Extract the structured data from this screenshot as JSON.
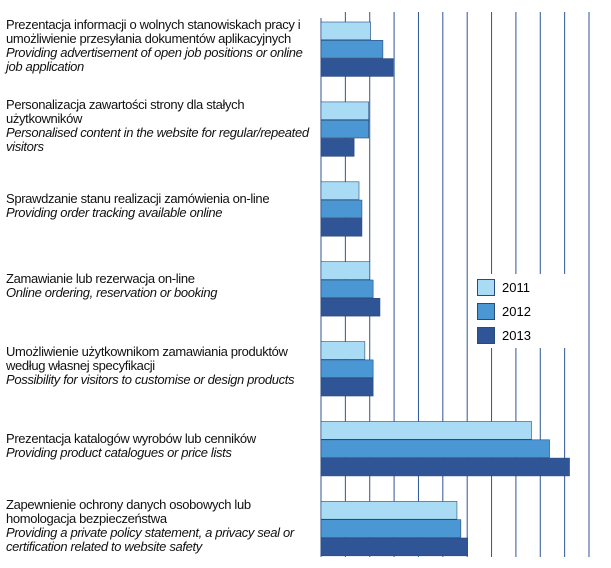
{
  "chart_data": {
    "type": "hbar",
    "categories": [
      {
        "pl": "Prezentacja informacji o wolnych stanowiskach pracy i umożliwienie przesyłania dokumentów aplikacyjnych",
        "en": "Providing advertisement of open job positions or online job application"
      },
      {
        "pl": "Personalizacja zawartości strony dla stałych użytkowników",
        "en": "Personalised content in the website for regular/repeated visitors"
      },
      {
        "pl": "Sprawdzanie stanu realizacji zamówienia on-line",
        "en": "Providing order tracking available online"
      },
      {
        "pl": "Zamawianie lub rezerwacja on-line",
        "en": "Online ordering, reservation or booking"
      },
      {
        "pl": "Umożliwienie użytkownikom zamawiania produktów według własnej specyfikacji",
        "en": "Possibility for visitors to customise or design products"
      },
      {
        "pl": "Prezentacja katalogów wyrobów lub cenników",
        "en": "Providing product catalogues or price lists"
      },
      {
        "pl": "Zapewnienie ochrony danych osobowych lub homologacja bezpieczeństwa",
        "en": "Providing a private policy statement, a privacy seal or certification related to website safety"
      }
    ],
    "series": [
      {
        "name": "2011",
        "color": "#a9dcf4",
        "values": [
          10.2,
          9.8,
          7.8,
          10.0,
          9.0,
          43.2,
          27.9
        ]
      },
      {
        "name": "2012",
        "color": "#4a97d4",
        "values": [
          12.7,
          9.8,
          8.4,
          10.7,
          10.7,
          46.9,
          28.7
        ]
      },
      {
        "name": "2013",
        "color": "#2f5597",
        "values": [
          14.8,
          6.8,
          8.4,
          12.1,
          10.7,
          51.0,
          30.1
        ]
      }
    ],
    "xlim": [
      0,
      55
    ],
    "xticks": [
      0,
      5,
      10,
      15,
      20,
      25,
      30,
      35,
      40,
      45,
      50,
      55
    ],
    "grid": true,
    "legend": "right"
  }
}
